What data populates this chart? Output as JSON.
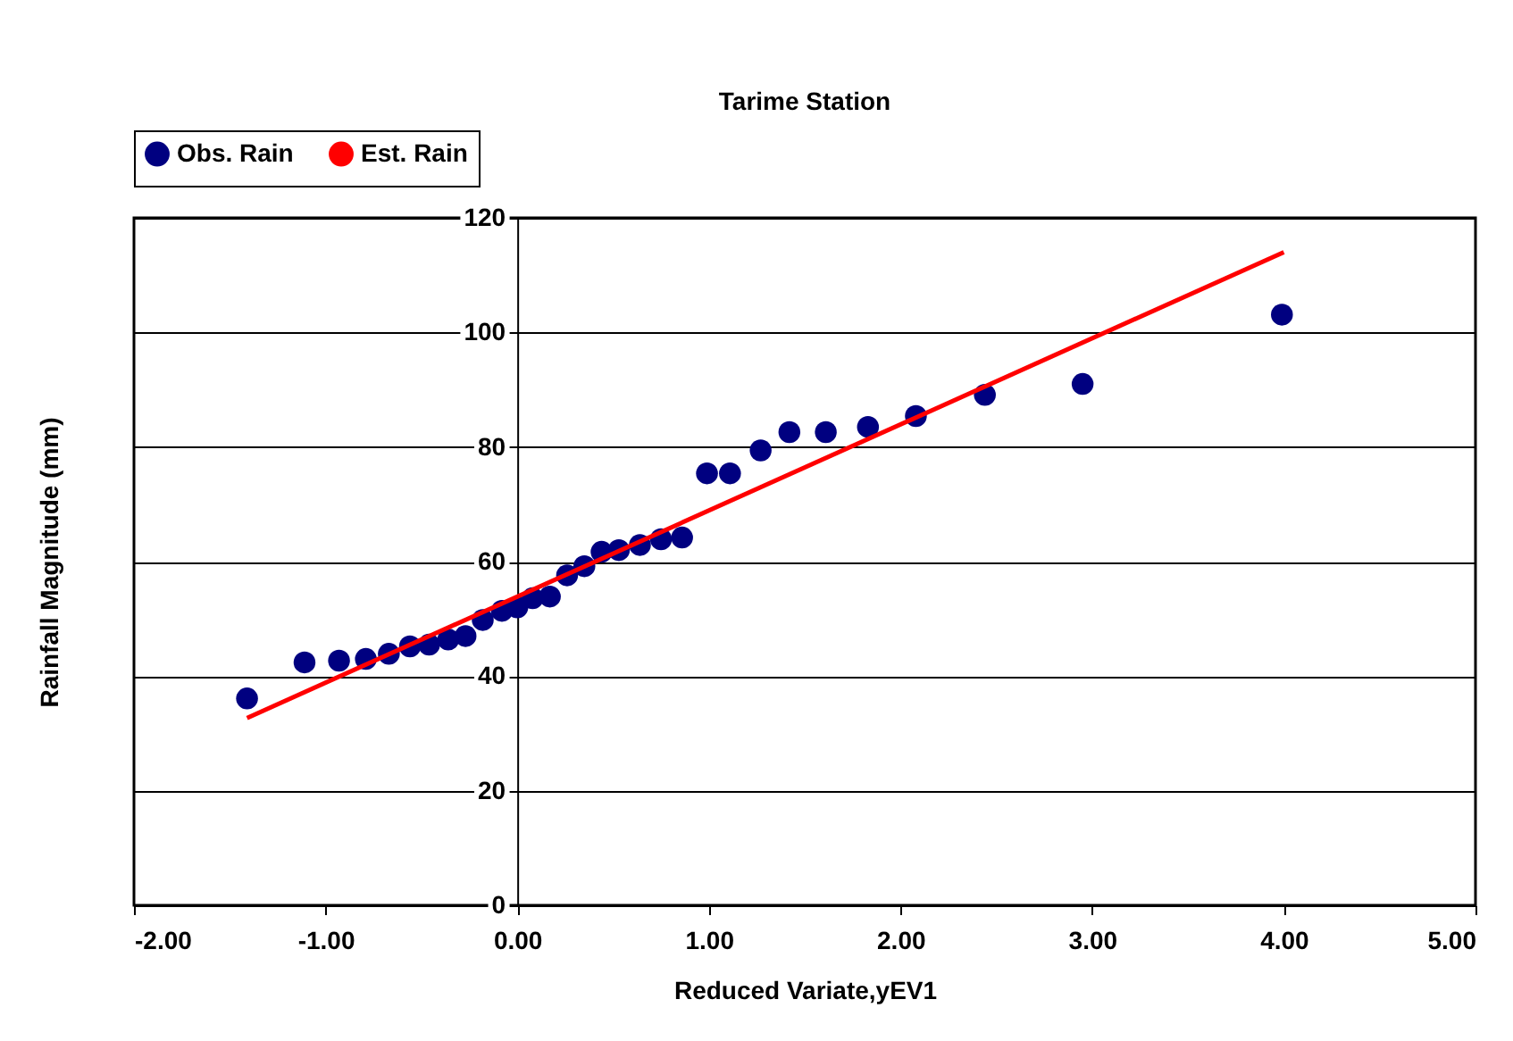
{
  "chart_data": {
    "type": "scatter",
    "title": "Tarime Station",
    "xlabel": "Reduced Variate,yEV1",
    "ylabel": "Rainfall Magnitude (mm)",
    "xlim": [
      -2,
      5
    ],
    "ylim": [
      0,
      120
    ],
    "xticks": [
      {
        "value": -2,
        "label": "-2.00"
      },
      {
        "value": -1,
        "label": "-1.00"
      },
      {
        "value": 0,
        "label": "0.00"
      },
      {
        "value": 1,
        "label": "1.00"
      },
      {
        "value": 2,
        "label": "2.00"
      },
      {
        "value": 3,
        "label": "3.00"
      },
      {
        "value": 4,
        "label": "4.00"
      },
      {
        "value": 5,
        "label": "5.00"
      }
    ],
    "yticks": [
      0,
      20,
      40,
      60,
      80,
      100,
      120
    ],
    "grid": "y",
    "legend": "top",
    "marker": "circle",
    "line_style": "solid",
    "series": [
      {
        "name": "Obs. Rain",
        "color": "#000080",
        "x": [
          -1.41,
          -1.11,
          -0.93,
          -0.79,
          -0.67,
          -0.56,
          -0.46,
          -0.36,
          -0.27,
          -0.18,
          -0.08,
          0,
          0.08,
          0.17,
          0.26,
          0.35,
          0.44,
          0.53,
          0.64,
          0.75,
          0.86,
          0.99,
          1.11,
          1.27,
          1.42,
          1.61,
          1.83,
          2.08,
          2.44,
          2.95,
          3.99
        ],
        "values": [
          36.1,
          42.4,
          42.7,
          43,
          43.9,
          45.2,
          45.5,
          46.4,
          47,
          49.8,
          51.4,
          52,
          53.6,
          53.9,
          57.6,
          59.2,
          61.7,
          62,
          62.9,
          63.9,
          64.2,
          75.4,
          75.4,
          79.4,
          82.6,
          82.6,
          83.5,
          85.4,
          89.1,
          91,
          103.1
        ]
      },
      {
        "name": "Est. Rain",
        "type": "line",
        "marker": "none",
        "color": "#ff0000",
        "x": [
          -1.41,
          4.0
        ],
        "values": [
          32.7,
          114.0
        ]
      }
    ]
  }
}
